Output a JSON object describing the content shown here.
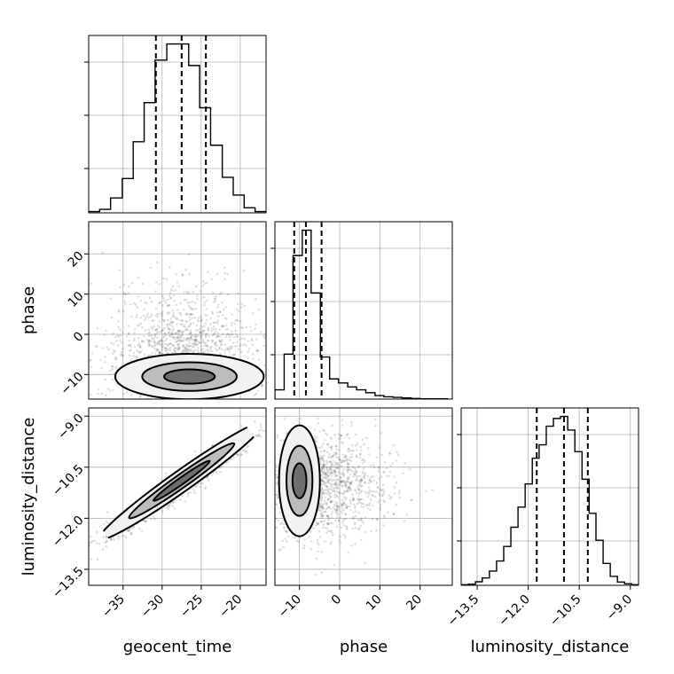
{
  "chart_data": {
    "type": "corner",
    "parameters": [
      "geocent_time",
      "phase",
      "luminosity_distance"
    ],
    "grid": true,
    "diagonal": [
      {
        "name": "geocent_time",
        "type": "histogram",
        "bins": [
          -39.4,
          -38.0,
          -36.6,
          -35.1,
          -33.7,
          -32.3,
          -30.9,
          -29.4,
          -28.0,
          -26.6,
          -25.2,
          -23.8,
          -22.3,
          -20.9,
          -19.5,
          -18.1,
          -16.7
        ],
        "counts": [
          0.4,
          1.1,
          4.7,
          10.8,
          22.4,
          34.7,
          48.1,
          53.2,
          53.2,
          46.4,
          33.1,
          21.3,
          11.2,
          5.6,
          1.6,
          0.4
        ],
        "quantiles": [
          -30.8,
          -27.5,
          -24.4
        ],
        "xlim": [
          -39.4,
          -16.7
        ]
      },
      {
        "name": "phase",
        "type": "histogram",
        "bins": [
          -16.1,
          -13.8,
          -11.6,
          -9.3,
          -7.1,
          -4.8,
          -2.5,
          -0.3,
          2.0,
          4.2,
          6.5,
          8.8,
          11.0,
          13.3,
          15.5,
          17.8,
          20.0,
          22.3,
          24.5,
          26.8
        ],
        "counts": [
          1.6,
          7.8,
          24.9,
          29.3,
          18.4,
          7.3,
          3.5,
          2.8,
          2.1,
          1.6,
          1.1,
          0.6,
          0.4,
          0.3,
          0.2,
          0.1,
          0.05,
          0.05,
          0.05
        ],
        "quantiles": [
          -11.3,
          -8.4,
          -4.5
        ],
        "xlim": [
          -16.1,
          28.0
        ]
      },
      {
        "name": "luminosity_distance",
        "type": "histogram",
        "bins": [
          -13.97,
          -13.76,
          -13.55,
          -13.35,
          -13.14,
          -12.93,
          -12.72,
          -12.51,
          -12.3,
          -12.09,
          -11.88,
          -11.68,
          -11.47,
          -11.26,
          -11.05,
          -10.84,
          -10.63,
          -10.42,
          -10.21,
          -10.01,
          -9.8,
          -9.59,
          -9.38,
          -9.17,
          -8.96,
          -8.76
        ],
        "counts": [
          0.2,
          0.4,
          1.2,
          2.5,
          4.8,
          8.2,
          13.1,
          19.6,
          26.4,
          34.2,
          42.9,
          47.4,
          53.7,
          56.3,
          57.0,
          52.4,
          45.1,
          35.8,
          24.3,
          15.2,
          7.4,
          3.0,
          1.1,
          0.5,
          0.2
        ],
        "quantiles": [
          -11.75,
          -10.95,
          -10.25
        ],
        "xlim": [
          -13.97,
          -8.76
        ]
      }
    ],
    "pairs": [
      {
        "x": "geocent_time",
        "y": "phase",
        "type": "2d-density-contour",
        "xlim": [
          -39.4,
          -16.7
        ],
        "ylim": [
          -16.1,
          28.0
        ],
        "scatter_center": [
          -27.5,
          -6.5
        ],
        "scatter_spread": [
          4.8,
          6.6
        ],
        "contour_levels": [
          0.39,
          0.86,
          0.99
        ],
        "density_peak": [
          -26.5,
          -10.5
        ]
      },
      {
        "x": "geocent_time",
        "y": "luminosity_distance",
        "type": "2d-density-contour",
        "xlim": [
          -39.4,
          -16.7
        ],
        "ylim": [
          -13.97,
          -8.76
        ],
        "scatter_center": [
          -27.5,
          -11.0
        ],
        "scatter_spread": [
          4.8,
          0.78
        ],
        "correlation": 0.97,
        "contour_levels": [
          0.39,
          0.86,
          0.99
        ],
        "density_peak": [
          -27.5,
          -10.9
        ]
      },
      {
        "x": "phase",
        "y": "luminosity_distance",
        "type": "2d-density-contour",
        "xlim": [
          -16.1,
          28.0
        ],
        "ylim": [
          -13.97,
          -8.76
        ],
        "scatter_center": [
          -6.5,
          -11.0
        ],
        "scatter_spread": [
          6.6,
          0.78
        ],
        "contour_levels": [
          0.39,
          0.86,
          0.99
        ],
        "density_peak": [
          -10.0,
          -10.9
        ]
      }
    ],
    "ticks": {
      "geocent_time": {
        "values": [
          -35,
          -30,
          -25,
          -20
        ],
        "labels": [
          "−35",
          "−30",
          "−25",
          "−20"
        ]
      },
      "phase_y": {
        "values": [
          20,
          10,
          0,
          -10
        ],
        "labels": [
          "20",
          "10",
          "0",
          "−10"
        ]
      },
      "phase_x": {
        "values": [
          -10,
          0,
          10,
          20
        ],
        "labels": [
          "−10",
          "0",
          "10",
          "20"
        ]
      },
      "luminosity_distance": {
        "values": [
          -13.5,
          -12.0,
          -10.5,
          -9.0
        ],
        "labels": [
          "−13.5",
          "−12.0",
          "−10.5",
          "−9.0"
        ]
      }
    },
    "axis_labels": {
      "bottom": [
        "geocent_time",
        "phase",
        "luminosity_distance"
      ],
      "left": [
        "phase",
        "luminosity_distance"
      ]
    }
  }
}
